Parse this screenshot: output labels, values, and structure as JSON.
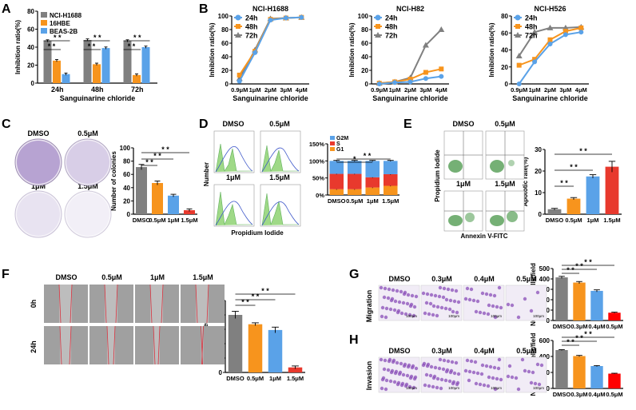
{
  "panels": {
    "A": "A",
    "B": "B",
    "C": "C",
    "D": "D",
    "E": "E",
    "F": "F",
    "G": "G",
    "H": "H"
  },
  "colors": {
    "gray": "#808080",
    "orange": "#F7941D",
    "blue": "#5AA2E8",
    "red": "#E8392D",
    "teal": "#3CB9A5",
    "darkred": "#C1272D"
  },
  "sig": "* *",
  "chart_data": [
    {
      "id": "A",
      "type": "bar",
      "categories": [
        "24h",
        "48h",
        "72h"
      ],
      "series": [
        {
          "name": "NCI-H1688",
          "values": [
            47,
            48,
            47
          ],
          "color": "#808080"
        },
        {
          "name": "16HBE",
          "values": [
            25,
            21,
            9
          ],
          "color": "#F7941D"
        },
        {
          "name": "BEAS-2B",
          "values": [
            10,
            39,
            40
          ],
          "color": "#5AA2E8"
        }
      ],
      "xlabel": "Sanguinarine chloride",
      "ylabel": "Inhibition ratio(%)",
      "ylim": [
        0,
        80
      ],
      "yticks": [
        0,
        20,
        40,
        60,
        80
      ],
      "legend": "top-left"
    },
    {
      "id": "B1",
      "type": "line",
      "title": "NCI-H1688",
      "categories": [
        "0.9μM",
        "1μM",
        "2μM",
        "3μM",
        "4μM"
      ],
      "series": [
        {
          "name": "24h",
          "values": [
            4,
            46,
            94,
            97,
            98
          ],
          "color": "#5AA2E8",
          "marker": "circle"
        },
        {
          "name": "48h",
          "values": [
            13,
            48,
            95,
            97,
            98
          ],
          "color": "#F7941D",
          "marker": "square"
        },
        {
          "name": "72h",
          "values": [
            8,
            50,
            96,
            97,
            98
          ],
          "color": "#808080",
          "marker": "triangle"
        }
      ],
      "xlabel": "Sanguinarine chloride",
      "ylabel": "Inhibition ratio(%)",
      "ylim": [
        0,
        100
      ],
      "yticks": [
        0,
        20,
        40,
        60,
        80,
        100
      ]
    },
    {
      "id": "B2",
      "type": "line",
      "title": "NCI-H82",
      "categories": [
        "0.9μM",
        "1μM",
        "2μM",
        "3μM",
        "4μM"
      ],
      "series": [
        {
          "name": "24h",
          "values": [
            0,
            2,
            3,
            8,
            11
          ],
          "color": "#5AA2E8",
          "marker": "circle"
        },
        {
          "name": "48h",
          "values": [
            1,
            3,
            7,
            17,
            22
          ],
          "color": "#F7941D",
          "marker": "square"
        },
        {
          "name": "72h",
          "values": [
            1,
            3,
            9,
            57,
            80
          ],
          "color": "#808080",
          "marker": "triangle"
        }
      ],
      "xlabel": "Sanguinarine chloride",
      "ylabel": "Inhibition ratio(%)",
      "ylim": [
        0,
        100
      ],
      "yticks": [
        0,
        20,
        40,
        60,
        80,
        100
      ]
    },
    {
      "id": "B3",
      "type": "line",
      "title": "NCI-H526",
      "categories": [
        "0.9μM",
        "1μM",
        "2μM",
        "3μM",
        "4μM"
      ],
      "series": [
        {
          "name": "24h",
          "values": [
            0,
            26,
            47,
            58,
            61
          ],
          "color": "#5AA2E8",
          "marker": "circle"
        },
        {
          "name": "48h",
          "values": [
            22,
            29,
            52,
            62,
            66
          ],
          "color": "#F7941D",
          "marker": "square"
        },
        {
          "name": "72h",
          "values": [
            33,
            61,
            66,
            66,
            67
          ],
          "color": "#808080",
          "marker": "triangle"
        }
      ],
      "xlabel": "Sanguinarine chloride",
      "ylabel": "Inhibition ratio(%)",
      "ylim": [
        0,
        80
      ],
      "yticks": [
        0,
        20,
        40,
        60,
        80
      ]
    },
    {
      "id": "C",
      "type": "bar",
      "categories": [
        "DMSO",
        "0.5μM",
        "1μM",
        "1.5μM"
      ],
      "values": [
        71,
        47,
        28,
        6
      ],
      "errors": [
        4,
        3,
        2,
        2
      ],
      "colors": [
        "#808080",
        "#F7941D",
        "#5AA2E8",
        "#E8392D"
      ],
      "ylabel": "Number of colonies",
      "ylim": [
        0,
        100
      ],
      "yticks": [
        0,
        20,
        40,
        60,
        80,
        100
      ]
    },
    {
      "id": "D",
      "type": "bar",
      "stacked": true,
      "categories": [
        "DMSO",
        "0.5μM",
        "1μM",
        "1.5μM"
      ],
      "series": [
        {
          "name": "G1",
          "values": [
            17,
            17,
            22,
            27
          ],
          "color": "#F7941D"
        },
        {
          "name": "S",
          "values": [
            45,
            45,
            30,
            34
          ],
          "color": "#E8392D"
        },
        {
          "name": "G2M",
          "values": [
            38,
            38,
            48,
            39
          ],
          "color": "#5AA2E8"
        }
      ],
      "ylim": [
        0,
        150
      ],
      "yticks": [
        "0%",
        "50%",
        "100%",
        "150%"
      ],
      "legend": "top-left"
    },
    {
      "id": "E",
      "type": "bar",
      "categories": [
        "DMSO",
        "0.5μM",
        "1μM",
        "1.5μM"
      ],
      "values": [
        2.3,
        7.2,
        17.5,
        22
      ],
      "errors": [
        0.4,
        0.5,
        0.8,
        2.5
      ],
      "colors": [
        "#808080",
        "#F7941D",
        "#5AA2E8",
        "#E8392D"
      ],
      "ylabel": "Apototic rate(%)",
      "ylim": [
        0,
        30
      ],
      "yticks": [
        0,
        10,
        20,
        30
      ]
    },
    {
      "id": "F",
      "type": "bar",
      "categories": [
        "DMSO",
        "0.5μM",
        "1μM",
        "1.5μM"
      ],
      "values": [
        80,
        67,
        59,
        7
      ],
      "errors": [
        5,
        2,
        4,
        2
      ],
      "colors": [
        "#808080",
        "#F7941D",
        "#5AA2E8",
        "#E8392D"
      ],
      "ylabel": "Motility rate(%)",
      "ylim": [
        0,
        100
      ],
      "yticks": [
        0,
        20,
        40,
        60,
        80,
        100
      ]
    },
    {
      "id": "G",
      "type": "bar",
      "categories": [
        "DMSO",
        "0.3μM",
        "0.4μM",
        "0.5μM"
      ],
      "values": [
        415,
        365,
        285,
        75
      ],
      "errors": [
        10,
        10,
        10,
        5
      ],
      "colors": [
        "#808080",
        "#F7941D",
        "#5AA2E8",
        "#FF0000"
      ],
      "ylabel": "Number of cells/field",
      "ylim": [
        0,
        500
      ],
      "yticks": [
        0,
        100,
        200,
        300,
        400,
        500
      ]
    },
    {
      "id": "H",
      "type": "bar",
      "categories": [
        "DMSO",
        "0.3μM",
        "0.4μM",
        "0.5μM"
      ],
      "values": [
        480,
        405,
        280,
        185
      ],
      "errors": [
        5,
        8,
        6,
        5
      ],
      "colors": [
        "#808080",
        "#F7941D",
        "#5AA2E8",
        "#FF0000"
      ],
      "ylabel": "Number of cells/field",
      "ylim": [
        0,
        600
      ],
      "yticks": [
        0,
        200,
        400,
        600
      ]
    }
  ],
  "C_images": {
    "dmso": "DMSO",
    "c1": "0.5μM",
    "c2": "1μM",
    "c3": "1.5μM"
  },
  "D_images": {
    "dmso": "DMSO",
    "c1": "0.5μM",
    "c2": "1μM",
    "c3": "1.5μM",
    "ylabel": "Number",
    "xlabel": "Propidium Iodide"
  },
  "E_images": {
    "dmso": "DMSO",
    "c1": "0.5μM",
    "c2": "1μM",
    "c3": "1.5μM",
    "ylabel": "Propidium Iodide",
    "xlabel": "Annexin V-FITC"
  },
  "F_images": {
    "cols": [
      "DMSO",
      "0.5μM",
      "1μM",
      "1.5μM"
    ],
    "rows": [
      "0h",
      "24h"
    ]
  },
  "G_images": {
    "cols": [
      "DMSO",
      "0.3μM",
      "0.4μM",
      "0.5μM"
    ],
    "row": "Migration",
    "scale": "100μm"
  },
  "H_images": {
    "cols": [
      "DMSO",
      "0.3μM",
      "0.4μM",
      "0.5μM"
    ],
    "row": "Invasion",
    "scale": "100μm"
  }
}
